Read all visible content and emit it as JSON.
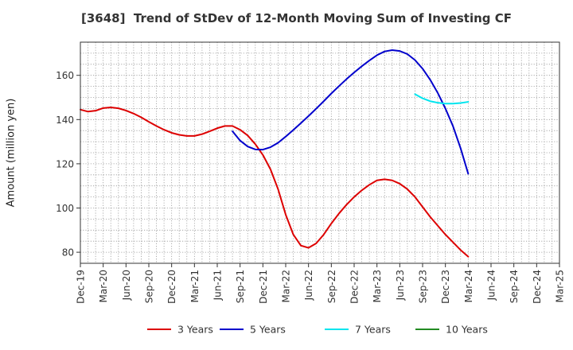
{
  "chart_data": {
    "type": "line",
    "title": "[3648]  Trend of StDev of 12-Month Moving Sum of Investing CF",
    "xlabel": "",
    "ylabel": "Amount (million yen)",
    "ylim": [
      75,
      175
    ],
    "yticks": [
      80,
      100,
      120,
      140,
      160
    ],
    "xticks": [
      "Dec-19",
      "Mar-20",
      "Jun-20",
      "Sep-20",
      "Dec-20",
      "Mar-21",
      "Jun-21",
      "Sep-21",
      "Dec-21",
      "Mar-22",
      "Jun-22",
      "Sep-22",
      "Dec-22",
      "Mar-23",
      "Jun-23",
      "Sep-23",
      "Dec-23",
      "Mar-24",
      "Jun-24",
      "Sep-24",
      "Dec-24",
      "Mar-25"
    ],
    "grid": true,
    "legend_position": "bottom",
    "series": [
      {
        "name": "3 Years",
        "color": "#dd0000",
        "x": [
          "Dec-19",
          "Jan-20",
          "Feb-20",
          "Mar-20",
          "Apr-20",
          "May-20",
          "Jun-20",
          "Jul-20",
          "Aug-20",
          "Sep-20",
          "Oct-20",
          "Nov-20",
          "Dec-20",
          "Jan-21",
          "Feb-21",
          "Mar-21",
          "Apr-21",
          "May-21",
          "Jun-21",
          "Jul-21",
          "Aug-21",
          "Sep-21",
          "Oct-21",
          "Nov-21",
          "Dec-21",
          "Jan-22",
          "Feb-22",
          "Mar-22",
          "Apr-22",
          "May-22",
          "Jun-22",
          "Jul-22",
          "Aug-22",
          "Sep-22",
          "Oct-22",
          "Nov-22",
          "Dec-22",
          "Jan-23",
          "Feb-23",
          "Mar-23",
          "Apr-23",
          "May-23",
          "Jun-23",
          "Jul-23",
          "Aug-23",
          "Sep-23",
          "Oct-23",
          "Nov-23",
          "Dec-23",
          "Jan-24",
          "Feb-24",
          "Mar-24"
        ],
        "values": [
          144.5,
          143.6,
          144.0,
          145.2,
          145.5,
          145.1,
          144.1,
          142.7,
          141.0,
          139.0,
          137.1,
          135.4,
          134.0,
          133.1,
          132.6,
          132.6,
          133.4,
          134.7,
          136.1,
          137.1,
          137.1,
          135.4,
          132.8,
          128.9,
          124.0,
          117.5,
          108.5,
          97.0,
          88.0,
          83.0,
          82.0,
          84.0,
          88.0,
          93.0,
          97.5,
          101.5,
          105.0,
          108.0,
          110.5,
          112.5,
          113.0,
          112.5,
          111.0,
          108.5,
          105.0,
          100.5,
          96.0,
          92.0,
          88.0,
          84.5,
          81.0,
          78.0
        ]
      },
      {
        "name": "5 Years",
        "color": "#0000cc",
        "x": [
          "Aug-21",
          "Sep-21",
          "Oct-21",
          "Nov-21",
          "Dec-21",
          "Jan-22",
          "Feb-22",
          "Mar-22",
          "Apr-22",
          "May-22",
          "Jun-22",
          "Jul-22",
          "Aug-22",
          "Sep-22",
          "Oct-22",
          "Nov-22",
          "Dec-22",
          "Jan-23",
          "Feb-23",
          "Mar-23",
          "Apr-23",
          "May-23",
          "Jun-23",
          "Jul-23",
          "Aug-23",
          "Sep-23",
          "Oct-23",
          "Nov-23",
          "Dec-23",
          "Jan-24",
          "Feb-24",
          "Mar-24"
        ],
        "values": [
          134.7,
          130.5,
          127.8,
          126.5,
          126.4,
          127.5,
          129.5,
          132.3,
          135.3,
          138.4,
          141.6,
          144.9,
          148.3,
          151.8,
          155.1,
          158.3,
          161.3,
          164.1,
          166.7,
          169.1,
          170.8,
          171.4,
          171.0,
          169.6,
          166.9,
          163.0,
          158.0,
          152.0,
          145.0,
          137.0,
          127.0,
          115.5
        ]
      },
      {
        "name": "7 Years",
        "color": "#00e5ee",
        "x": [
          "Aug-23",
          "Sep-23",
          "Oct-23",
          "Nov-23",
          "Dec-23",
          "Jan-24",
          "Feb-24",
          "Mar-24"
        ],
        "values": [
          151.5,
          149.6,
          148.3,
          147.6,
          147.2,
          147.2,
          147.5,
          148.0
        ]
      },
      {
        "name": "10 Years",
        "color": "#228b22",
        "x": [],
        "values": []
      }
    ]
  }
}
